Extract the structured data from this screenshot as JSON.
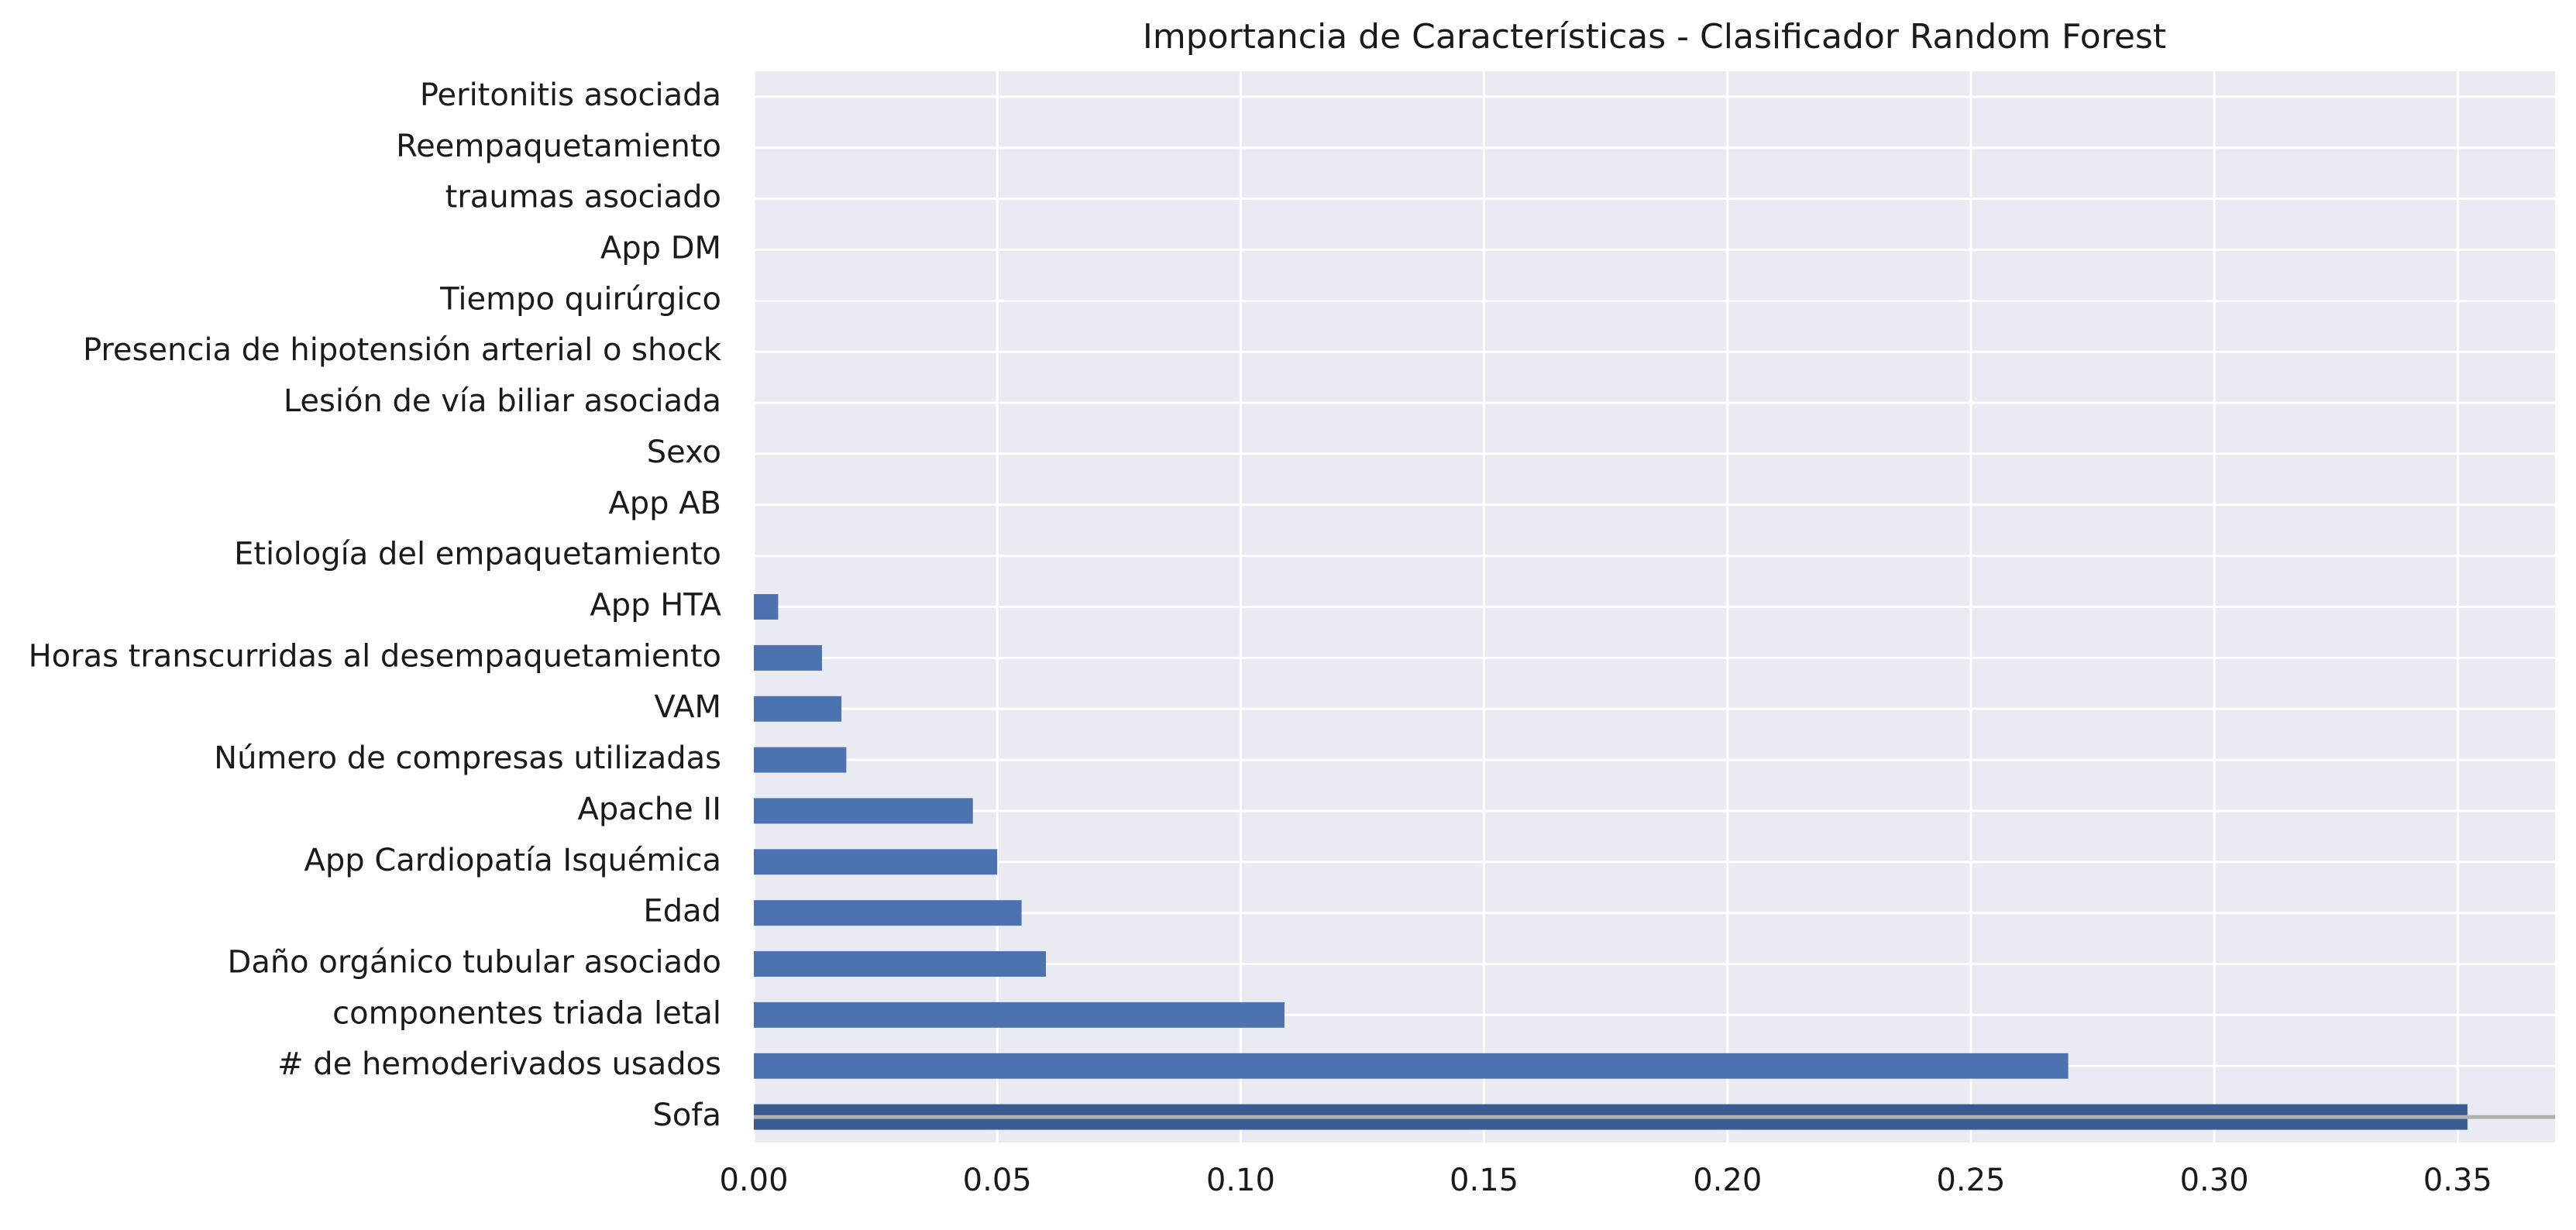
{
  "chart_data": {
    "type": "bar",
    "orientation": "horizontal",
    "title": "Importancia de Características - Clasificador Random Forest",
    "xlabel": "",
    "ylabel": "",
    "xlim": [
      0,
      0.37
    ],
    "grid": true,
    "categories": [
      "Sofa",
      "# de hemoderivados  usados",
      "componentes triada letal",
      "Daño orgánico tubular asociado",
      "Edad",
      "App Cardiopatía Isquémica",
      "Apache II",
      "Número de compresas utilizadas",
      "VAM",
      "Horas transcurridas al desempaquetamiento",
      "App HTA",
      "Etiología del empaquetamiento",
      "App AB",
      "Sexo",
      "Lesión de vía biliar asociada",
      "Presencia de hipotensión arterial o shock ",
      "Tiempo quirúrgico",
      "App DM",
      "traumas asociado",
      "Reempaquetamiento",
      "Peritonitis asociada"
    ],
    "values": [
      0.352,
      0.27,
      0.109,
      0.06,
      0.055,
      0.05,
      0.045,
      0.019,
      0.018,
      0.014,
      0.005,
      0,
      0,
      0,
      0,
      0,
      0,
      0,
      0,
      0,
      0
    ],
    "x_ticks": [
      "0.00",
      "0.05",
      "0.10",
      "0.15",
      "0.20",
      "0.25",
      "0.30",
      "0.35"
    ],
    "x_tick_values": [
      0,
      0.05,
      0.1,
      0.15,
      0.2,
      0.25,
      0.3,
      0.35
    ],
    "colors": {
      "bar": "#4c72b0",
      "highlight_bar": "#3b5a8f",
      "plot_background": "#eaeaf2",
      "grid": "#ffffff",
      "text": "#1a1a1a",
      "reference_line": "#b0b0b0"
    }
  }
}
